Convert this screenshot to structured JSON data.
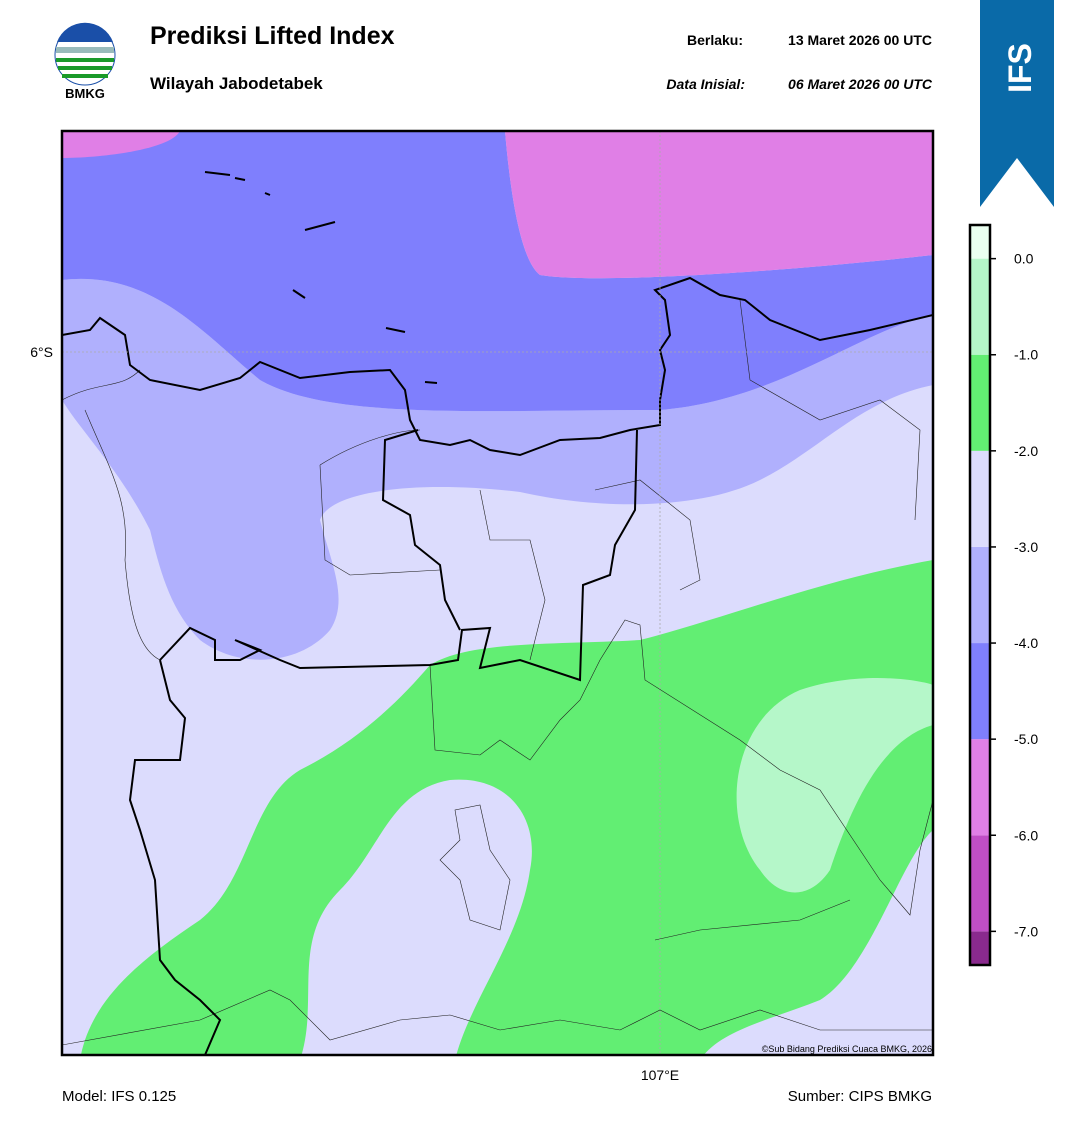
{
  "header": {
    "logo_text": "BMKG",
    "title": "Prediksi Lifted Index",
    "subtitle": "Wilayah Jabodetabek",
    "valid_label": "Berlaku:",
    "valid_time": "13 Maret 2026 00 UTC",
    "init_label": "Data Inisial:",
    "init_time": "06 Maret 2026 00 UTC",
    "badge": "IFS"
  },
  "map": {
    "lat_label": "6°S",
    "lon_label": "107°E",
    "credit": "©Sub Bidang Prediksi Cuaca BMKG, 2026"
  },
  "colorbar": {
    "limits": [
      -7.35,
      0.35
    ],
    "levels": [
      -7,
      -6,
      -5,
      -4,
      -3,
      -2,
      -1,
      0
    ],
    "colors": [
      "#8a2a8e",
      "#c04ec6",
      "#e07fe6",
      "#7f7ffd",
      "#b0b0fd",
      "#dcdcfd",
      "#62ee73",
      "#b5f7c9",
      "#eafff0"
    ],
    "ticks": [
      {
        "value": 0,
        "label": "0.0"
      },
      {
        "value": -1,
        "label": "-1.0"
      },
      {
        "value": -2,
        "label": "-2.0"
      },
      {
        "value": -3,
        "label": "-3.0"
      },
      {
        "value": -4,
        "label": "-4.0"
      },
      {
        "value": -5,
        "label": "-5.0"
      },
      {
        "value": -6,
        "label": "-6.0"
      },
      {
        "value": -7,
        "label": "-7.0"
      }
    ]
  },
  "footer": {
    "model": "Model: IFS 0.125",
    "source": "Sumber: CIPS BMKG"
  }
}
